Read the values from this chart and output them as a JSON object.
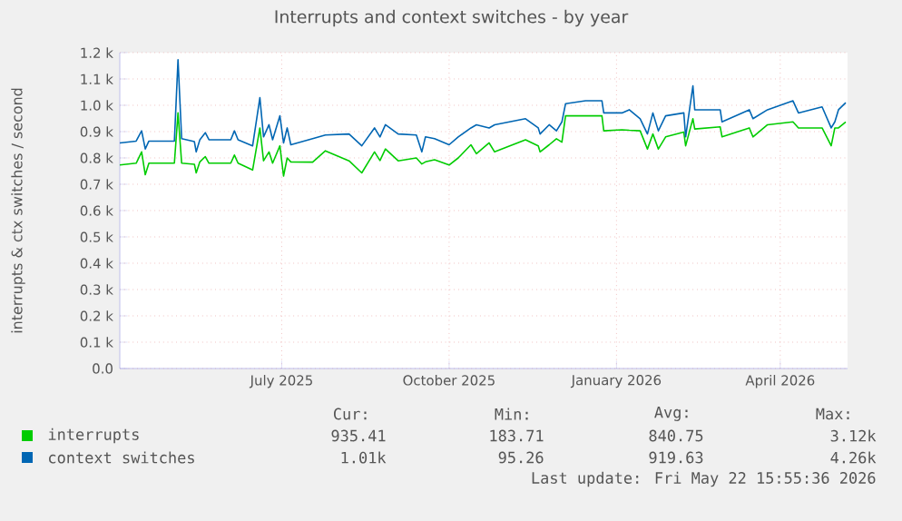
{
  "chart_data": {
    "type": "line",
    "title": "Interrupts and context switches - by year",
    "ylabel": "interrupts & ctx switches / second",
    "xlim": [
      "2025-04-03",
      "2026-05-08"
    ],
    "xticks": [
      {
        "value": "2025-07-01",
        "label": "July 2025"
      },
      {
        "value": "2025-10-01",
        "label": "October 2025"
      },
      {
        "value": "2026-01-01",
        "label": "January 2026"
      },
      {
        "value": "2026-04-01",
        "label": "April 2026"
      }
    ],
    "ylim": [
      0,
      1200
    ],
    "yticks": [
      {
        "value": 0,
        "label": "0.0"
      },
      {
        "value": 100,
        "label": "0.1 k"
      },
      {
        "value": 200,
        "label": "0.2 k"
      },
      {
        "value": 300,
        "label": "0.3 k"
      },
      {
        "value": 400,
        "label": "0.4 k"
      },
      {
        "value": 500,
        "label": "0.5 k"
      },
      {
        "value": 600,
        "label": "0.6 k"
      },
      {
        "value": 700,
        "label": "0.7 k"
      },
      {
        "value": 800,
        "label": "0.8 k"
      },
      {
        "value": 900,
        "label": "0.9 k"
      },
      {
        "value": 1000,
        "label": "1.0 k"
      },
      {
        "value": 1100,
        "label": "1.1 k"
      },
      {
        "value": 1200,
        "label": "1.2 k"
      }
    ],
    "grid": true,
    "legend": "bottom",
    "marker": "none",
    "line_style": "solid",
    "series": [
      {
        "name": "interrupts",
        "color": "#00cc00",
        "x": [
          "2025-04-03",
          "2025-04-12",
          "2025-04-15",
          "2025-04-17",
          "2025-04-19",
          "2025-05-03",
          "2025-05-05",
          "2025-05-07",
          "2025-05-14",
          "2025-05-15",
          "2025-05-17",
          "2025-05-20",
          "2025-05-22",
          "2025-06-03",
          "2025-06-05",
          "2025-06-07",
          "2025-06-15",
          "2025-06-19",
          "2025-06-21",
          "2025-06-24",
          "2025-06-26",
          "2025-06-30",
          "2025-07-02",
          "2025-07-04",
          "2025-07-06",
          "2025-07-18",
          "2025-07-25",
          "2025-08-07",
          "2025-08-14",
          "2025-08-21",
          "2025-08-24",
          "2025-08-27",
          "2025-09-03",
          "2025-09-13",
          "2025-09-16",
          "2025-09-18",
          "2025-09-23",
          "2025-10-01",
          "2025-10-06",
          "2025-10-13",
          "2025-10-16",
          "2025-10-23",
          "2025-10-26",
          "2025-11-12",
          "2025-11-19",
          "2025-11-20",
          "2025-11-25",
          "2025-11-29",
          "2025-12-02",
          "2025-12-04",
          "2025-12-15",
          "2025-12-24",
          "2025-12-25",
          "2026-01-04",
          "2026-01-08",
          "2026-01-14",
          "2026-01-18",
          "2026-01-21",
          "2026-01-24",
          "2026-01-28",
          "2026-02-07",
          "2026-02-08",
          "2026-02-12",
          "2026-02-13",
          "2026-02-27",
          "2026-02-28",
          "2026-03-15",
          "2026-03-17",
          "2026-03-25",
          "2026-04-08",
          "2026-04-11",
          "2026-04-24",
          "2026-04-29",
          "2026-05-01",
          "2026-05-03",
          "2026-05-07"
        ],
        "values": [
          773,
          780,
          823,
          736,
          780,
          780,
          971,
          780,
          776,
          743,
          785,
          805,
          780,
          780,
          811,
          780,
          754,
          914,
          789,
          823,
          780,
          846,
          731,
          800,
          785,
          784,
          827,
          789,
          743,
          823,
          790,
          834,
          789,
          800,
          777,
          785,
          793,
          773,
          800,
          850,
          816,
          857,
          823,
          869,
          846,
          823,
          850,
          873,
          860,
          960,
          960,
          960,
          903,
          907,
          905,
          903,
          834,
          891,
          834,
          880,
          898,
          846,
          949,
          910,
          918,
          880,
          914,
          880,
          926,
          937,
          914,
          914,
          846,
          914,
          914,
          937
        ]
      },
      {
        "name": "context switches",
        "color": "#0066b3",
        "x": [
          "2025-04-03",
          "2025-04-12",
          "2025-04-15",
          "2025-04-17",
          "2025-04-19",
          "2025-05-03",
          "2025-05-05",
          "2025-05-07",
          "2025-05-14",
          "2025-05-15",
          "2025-05-17",
          "2025-05-20",
          "2025-05-22",
          "2025-06-03",
          "2025-06-05",
          "2025-06-07",
          "2025-06-15",
          "2025-06-19",
          "2025-06-21",
          "2025-06-24",
          "2025-06-26",
          "2025-06-30",
          "2025-07-02",
          "2025-07-04",
          "2025-07-06",
          "2025-07-18",
          "2025-07-25",
          "2025-08-07",
          "2025-08-14",
          "2025-08-21",
          "2025-08-24",
          "2025-08-27",
          "2025-09-03",
          "2025-09-13",
          "2025-09-16",
          "2025-09-18",
          "2025-09-23",
          "2025-10-01",
          "2025-10-06",
          "2025-10-13",
          "2025-10-16",
          "2025-10-23",
          "2025-10-26",
          "2025-11-12",
          "2025-11-19",
          "2025-11-20",
          "2025-11-25",
          "2025-11-29",
          "2025-12-02",
          "2025-12-04",
          "2025-12-15",
          "2025-12-24",
          "2025-12-25",
          "2026-01-04",
          "2026-01-08",
          "2026-01-14",
          "2026-01-18",
          "2026-01-21",
          "2026-01-24",
          "2026-01-28",
          "2026-02-07",
          "2026-02-08",
          "2026-02-12",
          "2026-02-13",
          "2026-02-27",
          "2026-02-28",
          "2026-03-15",
          "2026-03-17",
          "2026-03-25",
          "2026-04-08",
          "2026-04-11",
          "2026-04-24",
          "2026-04-29",
          "2026-05-01",
          "2026-05-03",
          "2026-05-07"
        ],
        "values": [
          857,
          864,
          903,
          834,
          864,
          864,
          1173,
          873,
          862,
          823,
          869,
          896,
          869,
          869,
          903,
          869,
          846,
          1029,
          880,
          926,
          869,
          960,
          857,
          914,
          850,
          873,
          887,
          891,
          846,
          914,
          880,
          926,
          891,
          887,
          823,
          880,
          873,
          850,
          880,
          914,
          926,
          914,
          926,
          949,
          914,
          891,
          926,
          903,
          937,
          1006,
          1017,
          1017,
          971,
          971,
          983,
          949,
          891,
          971,
          903,
          960,
          971,
          880,
          1074,
          983,
          983,
          937,
          983,
          949,
          983,
          1017,
          971,
          994,
          914,
          937,
          983,
          1010
        ]
      }
    ],
    "annotations": [
      "Cur:",
      "Min:",
      "Avg:",
      "Max:",
      "935.41",
      "183.71",
      "840.75",
      "3.12k",
      "1.01k",
      "95.26",
      "919.63",
      "4.26k",
      "Last update: Fri May 22 15:55:36 2026"
    ]
  }
}
